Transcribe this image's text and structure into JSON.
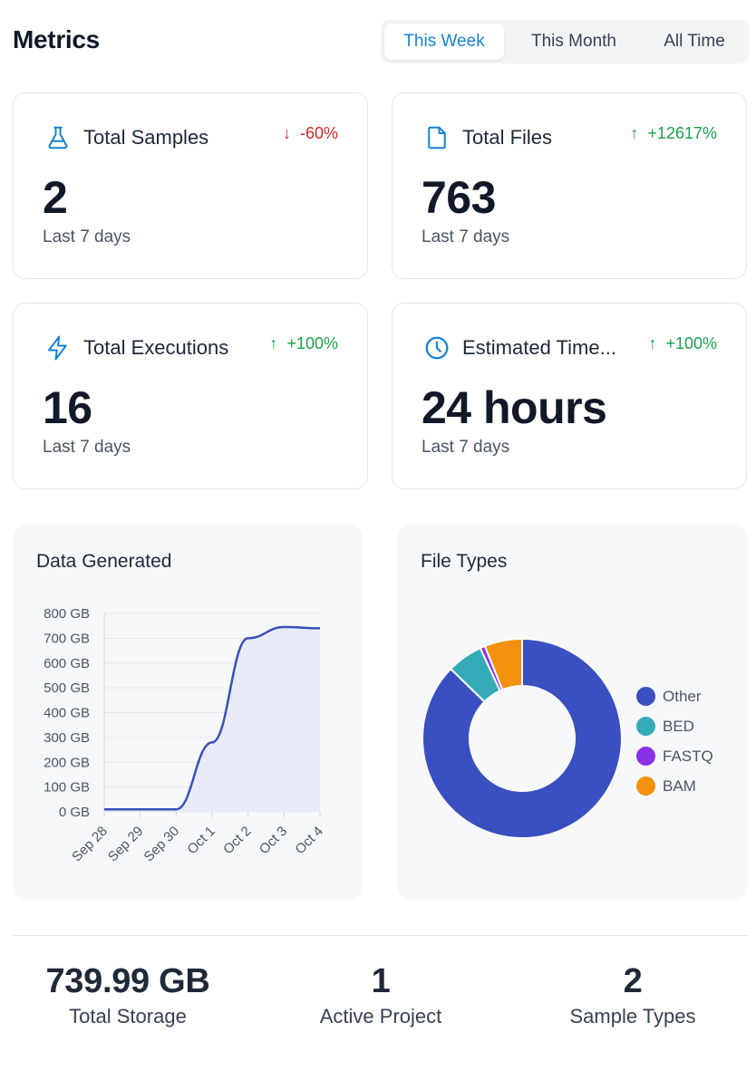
{
  "header": {
    "title": "Metrics",
    "tabs": [
      {
        "label": "This Week",
        "active": true
      },
      {
        "label": "This Month",
        "active": false
      },
      {
        "label": "All Time",
        "active": false
      }
    ]
  },
  "cards": [
    {
      "icon": "flask-icon",
      "label": "Total Samples",
      "delta": "-60%",
      "direction": "down",
      "value": "2",
      "sub": "Last 7 days"
    },
    {
      "icon": "file-icon",
      "label": "Total Files",
      "delta": "+12617%",
      "direction": "up",
      "value": "763",
      "sub": "Last 7 days"
    },
    {
      "icon": "lightning-icon",
      "label": "Total Executions",
      "delta": "+100%",
      "direction": "up",
      "value": "16",
      "sub": "Last 7 days"
    },
    {
      "icon": "clock-icon",
      "label": "Estimated Time...",
      "delta": "+100%",
      "direction": "up",
      "value": "24 hours",
      "sub": "Last 7 days"
    }
  ],
  "colors": {
    "accent": "#1682d4",
    "line": "#3a4fb8",
    "area": "#e8ebf7",
    "up": "#16a34a",
    "down": "#dc2626"
  },
  "data_generated": {
    "title": "Data Generated"
  },
  "file_types": {
    "title": "File Types"
  },
  "chart_data": [
    {
      "type": "area",
      "title": "Data Generated",
      "categories": [
        "Sep 28",
        "Sep 29",
        "Sep 30",
        "Oct 1",
        "Oct 2",
        "Oct 3",
        "Oct 4"
      ],
      "values": [
        10,
        10,
        10,
        280,
        700,
        745,
        740
      ],
      "y_ticks": [
        "0 GB",
        "100 GB",
        "200 GB",
        "300 GB",
        "400 GB",
        "500 GB",
        "600 GB",
        "700 GB",
        "800 GB"
      ],
      "ylim": [
        0,
        800
      ],
      "ylabel_unit": "GB"
    },
    {
      "type": "pie",
      "style": "donut",
      "title": "File Types",
      "labels": [
        "Other",
        "BED",
        "FASTQ",
        "BAM"
      ],
      "values": [
        87.3,
        5.8,
        0.8,
        6.1
      ],
      "colors": [
        "#3a4fc0",
        "#36abb8",
        "#8b31e8",
        "#f2910d"
      ]
    }
  ],
  "summary": [
    {
      "value": "739.99 GB",
      "label": "Total Storage"
    },
    {
      "value": "1",
      "label": "Active Project"
    },
    {
      "value": "2",
      "label": "Sample Types"
    }
  ]
}
